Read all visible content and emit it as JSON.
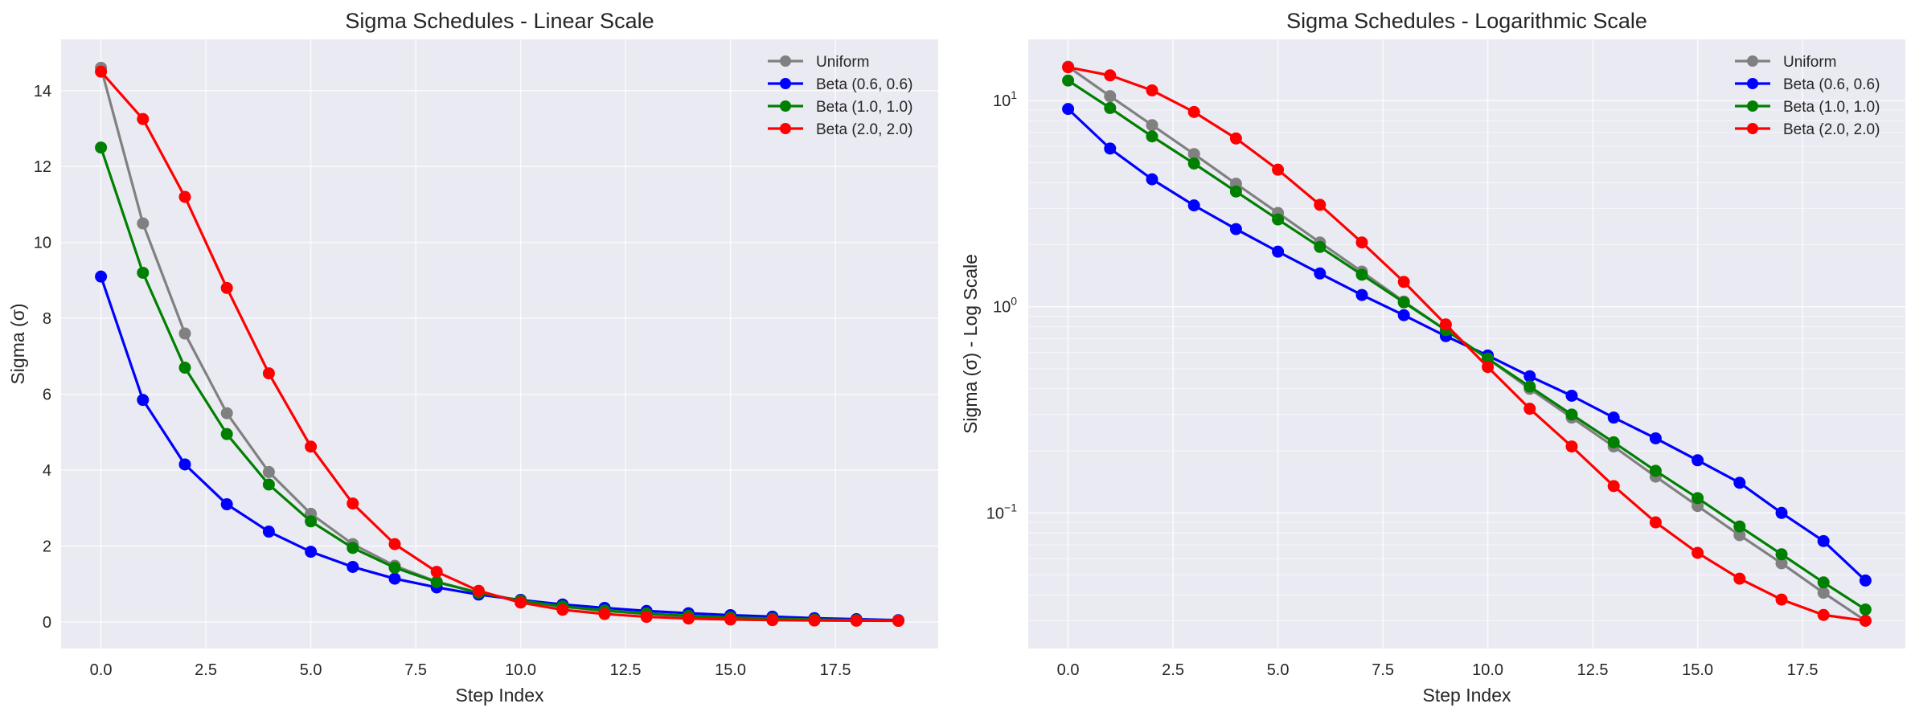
{
  "chart_data": [
    {
      "type": "line",
      "title": "Sigma Schedules - Linear Scale",
      "xlabel": "Step Index",
      "ylabel": "Sigma (σ)",
      "yscale": "linear",
      "xlim": [
        -0.95,
        19.95
      ],
      "ylim": [
        -0.7,
        15.35
      ],
      "xticks": [
        0.0,
        2.5,
        5.0,
        7.5,
        10.0,
        12.5,
        15.0,
        17.5
      ],
      "xtick_labels": [
        "0.0",
        "2.5",
        "5.0",
        "7.5",
        "10.0",
        "12.5",
        "15.0",
        "17.5"
      ],
      "yticks": [
        0,
        2,
        4,
        6,
        8,
        10,
        12,
        14
      ],
      "ytick_labels": [
        "0",
        "2",
        "4",
        "6",
        "8",
        "10",
        "12",
        "14"
      ],
      "grid": true,
      "legend": "top-right",
      "x": [
        0,
        1,
        2,
        3,
        4,
        5,
        6,
        7,
        8,
        9,
        10,
        11,
        12,
        13,
        14,
        15,
        16,
        17,
        18,
        19
      ]
    },
    {
      "type": "line",
      "title": "Sigma Schedules - Logarithmic Scale",
      "xlabel": "Step Index",
      "ylabel": "Sigma (σ) - Log Scale",
      "yscale": "log",
      "xlim": [
        -0.95,
        19.95
      ],
      "ylim": [
        0.022,
        19.8
      ],
      "xticks": [
        0.0,
        2.5,
        5.0,
        7.5,
        10.0,
        12.5,
        15.0,
        17.5
      ],
      "xtick_labels": [
        "0.0",
        "2.5",
        "5.0",
        "7.5",
        "10.0",
        "12.5",
        "15.0",
        "17.5"
      ],
      "yticks": [
        0.1,
        1,
        10
      ],
      "ytick_labels": [
        {
          "base": "10",
          "exp": "−1"
        },
        {
          "base": "10",
          "exp": "0"
        },
        {
          "base": "10",
          "exp": "1"
        }
      ],
      "grid": true,
      "legend": "top-right",
      "x": [
        0,
        1,
        2,
        3,
        4,
        5,
        6,
        7,
        8,
        9,
        10,
        11,
        12,
        13,
        14,
        15,
        16,
        17,
        18,
        19
      ]
    }
  ],
  "series": [
    {
      "name": "Uniform",
      "color": "#808080",
      "values": [
        14.6,
        10.5,
        7.6,
        5.5,
        3.95,
        2.85,
        2.05,
        1.48,
        1.06,
        0.77,
        0.56,
        0.4,
        0.29,
        0.21,
        0.15,
        0.108,
        0.078,
        0.057,
        0.041,
        0.03
      ]
    },
    {
      "name": "Beta (0.6, 0.6)",
      "color": "#0000ff",
      "values": [
        9.1,
        5.85,
        4.15,
        3.1,
        2.38,
        1.85,
        1.45,
        1.14,
        0.91,
        0.72,
        0.58,
        0.46,
        0.37,
        0.29,
        0.23,
        0.18,
        0.14,
        0.1,
        0.073,
        0.047
      ]
    },
    {
      "name": "Beta (1.0, 1.0)",
      "color": "#008000",
      "values": [
        12.5,
        9.2,
        6.7,
        4.95,
        3.62,
        2.65,
        1.95,
        1.43,
        1.05,
        0.77,
        0.56,
        0.41,
        0.3,
        0.22,
        0.16,
        0.118,
        0.086,
        0.063,
        0.046,
        0.034
      ]
    },
    {
      "name": "Beta (2.0, 2.0)",
      "color": "#ff0000",
      "values": [
        14.5,
        13.25,
        11.2,
        8.8,
        6.55,
        4.62,
        3.12,
        2.05,
        1.32,
        0.82,
        0.51,
        0.32,
        0.21,
        0.135,
        0.09,
        0.064,
        0.048,
        0.038,
        0.032,
        0.03
      ]
    }
  ],
  "colors": {
    "axes_bg": "#eaeaf2",
    "grid": "#ffffff"
  }
}
